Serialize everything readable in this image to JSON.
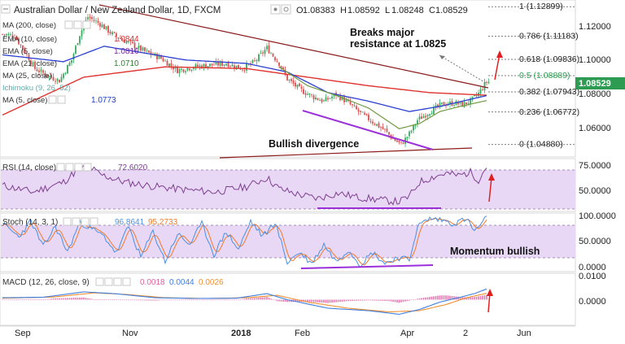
{
  "header": {
    "symbol": "Australian Dollar / New Zealand Dollar, 1D, FXCM",
    "ohlc": [
      {
        "k": "O",
        "v": "1.08383"
      },
      {
        "k": "H",
        "v": "1.08592"
      },
      {
        "k": "L",
        "v": "1.08248"
      },
      {
        "k": "C",
        "v": "1.08529"
      }
    ]
  },
  "legend": [
    {
      "label": "MA (200, close)",
      "value": "",
      "color": "#e64b3c"
    },
    {
      "label": "EMA (10, close)",
      "value": "1.0844",
      "color": "#d32f2f"
    },
    {
      "label": "EMA (5, close)",
      "value": "1.0816",
      "color": "#7b1fa2"
    },
    {
      "label": "EMA (21, close)",
      "value": "1.0710",
      "color": "#2e7d32"
    },
    {
      "label": "MA (25, close)",
      "value": "",
      "color": "#1565c0"
    },
    {
      "label": "Ichimoku (9, 26, 52)",
      "value": "",
      "color": "#00897b"
    },
    {
      "label": "MA (5, close)",
      "value": "1.0773",
      "color": "#1a3ec8"
    }
  ],
  "colors": {
    "up": "#3aa860",
    "down": "#d94f4f",
    "ma200": "#e0322e",
    "ma_blue": "#2a3fd1",
    "ema_green": "#6f9a3f",
    "trend": "#8b1a1a",
    "divergence": "#9b30d9",
    "arrow": "#e02020",
    "panel_fill": "#e6d6f5",
    "rsi_line": "#7d3f8f",
    "k_line": "#4c8fe0",
    "d_line": "#f07a2a",
    "macd": "#3f7fe0",
    "signal": "#f09030",
    "hist": "#e05fa0",
    "fib": "#333333",
    "price_tag": "#2d9b52"
  },
  "price_axis": {
    "ticks": [
      "1.12000",
      "1.10000",
      "1.08000",
      "1.06000"
    ],
    "current_price": "1.08529"
  },
  "fibonacci": [
    {
      "ratio": "1",
      "level": "1.12899"
    },
    {
      "ratio": "0.786",
      "level": "1.11183"
    },
    {
      "ratio": "0.618",
      "level": "1.09836"
    },
    {
      "ratio": "0.5",
      "level": "1.08889"
    },
    {
      "ratio": "0.382",
      "level": "1.07943"
    },
    {
      "ratio": "0.236",
      "level": "1.06772"
    },
    {
      "ratio": "0",
      "level": "1.04880"
    }
  ],
  "annotations": {
    "breakout": "Breaks major resistance at 1.0825",
    "breakout_line1": "Breaks major",
    "breakout_line2": "resistance at 1.0825",
    "divergence": "Bullish divergence",
    "momentum": "Momentum bullish"
  },
  "rsi": {
    "label": "RSI (14, close)",
    "value": "72.6020",
    "axis_ticks": [
      "75.0000",
      "50.0000"
    ]
  },
  "stoch": {
    "label": "Stoch (14, 3, 1)",
    "k_value": "96.8641",
    "d_value": "95.2733",
    "axis_ticks": [
      "100.0000",
      "50.0000",
      "0.0000"
    ]
  },
  "macd": {
    "label": "MACD (12, 26, close, 9)",
    "hist_value": "0.0018",
    "macd_value": "0.0044",
    "signal_value": "0.0026",
    "axis_ticks": [
      "0.0100",
      "0.0000"
    ]
  },
  "dates": [
    "Sep",
    "Nov",
    "2018",
    "Feb",
    "Apr",
    "2",
    "Jun"
  ],
  "chart_data": {
    "type": "candlestick",
    "title": "Australian Dollar / New Zealand Dollar, 1D, FXCM",
    "ylim": [
      1.043,
      1.131
    ],
    "anchors": [
      [
        0,
        1.113
      ],
      [
        6,
        1.112
      ],
      [
        12,
        1.101
      ],
      [
        16,
        1.093
      ],
      [
        22,
        1.089
      ],
      [
        28,
        1.086
      ],
      [
        34,
        1.098
      ],
      [
        38,
        1.113
      ],
      [
        42,
        1.123
      ],
      [
        48,
        1.119
      ],
      [
        54,
        1.113
      ],
      [
        62,
        1.108
      ],
      [
        70,
        1.103
      ],
      [
        78,
        1.099
      ],
      [
        86,
        1.092
      ],
      [
        94,
        1.094
      ],
      [
        102,
        1.095
      ],
      [
        110,
        1.096
      ],
      [
        118,
        1.093
      ],
      [
        124,
        1.097
      ],
      [
        130,
        1.105
      ],
      [
        136,
        1.096
      ],
      [
        140,
        1.087
      ],
      [
        146,
        1.081
      ],
      [
        152,
        1.077
      ],
      [
        158,
        1.074
      ],
      [
        164,
        1.078
      ],
      [
        170,
        1.073
      ],
      [
        176,
        1.067
      ],
      [
        182,
        1.062
      ],
      [
        188,
        1.057
      ],
      [
        192,
        1.052
      ],
      [
        196,
        1.049
      ],
      [
        200,
        1.055
      ],
      [
        204,
        1.063
      ],
      [
        210,
        1.068
      ],
      [
        216,
        1.072
      ],
      [
        222,
        1.073
      ],
      [
        226,
        1.072
      ],
      [
        230,
        1.074
      ],
      [
        234,
        1.0785
      ],
      [
        238,
        1.0853
      ]
    ],
    "ma200_anchors": [
      [
        0,
        1.066
      ],
      [
        40,
        1.088
      ],
      [
        80,
        1.094
      ],
      [
        120,
        1.093
      ],
      [
        150,
        1.088
      ],
      [
        180,
        1.083
      ],
      [
        210,
        1.079
      ],
      [
        238,
        1.0775
      ]
    ],
    "ma_blue_anchors": [
      [
        0,
        1.101
      ],
      [
        30,
        1.097
      ],
      [
        50,
        1.106
      ],
      [
        90,
        1.098
      ],
      [
        120,
        1.096
      ],
      [
        140,
        1.091
      ],
      [
        160,
        1.079
      ],
      [
        180,
        1.074
      ],
      [
        200,
        1.068
      ],
      [
        215,
        1.071
      ],
      [
        238,
        1.0773
      ]
    ],
    "ema_green_anchors": [
      [
        136,
        1.094
      ],
      [
        150,
        1.083
      ],
      [
        165,
        1.077
      ],
      [
        180,
        1.07
      ],
      [
        195,
        1.058
      ],
      [
        205,
        1.061
      ],
      [
        215,
        1.068
      ],
      [
        225,
        1.071
      ],
      [
        238,
        1.0744
      ]
    ],
    "rsi_anchors": [
      [
        0,
        55
      ],
      [
        15,
        49
      ],
      [
        30,
        58
      ],
      [
        38,
        71
      ],
      [
        42,
        73
      ],
      [
        48,
        65
      ],
      [
        60,
        58
      ],
      [
        75,
        54
      ],
      [
        90,
        51
      ],
      [
        105,
        49
      ],
      [
        120,
        54
      ],
      [
        130,
        62
      ],
      [
        136,
        52
      ],
      [
        145,
        47
      ],
      [
        155,
        43
      ],
      [
        165,
        48
      ],
      [
        175,
        44
      ],
      [
        185,
        42
      ],
      [
        195,
        40
      ],
      [
        200,
        45
      ],
      [
        205,
        58
      ],
      [
        212,
        63
      ],
      [
        218,
        66
      ],
      [
        224,
        64
      ],
      [
        230,
        67
      ],
      [
        234,
        60
      ],
      [
        238,
        72.6
      ]
    ],
    "stoch_k_anchors": [
      [
        0,
        85
      ],
      [
        8,
        60
      ],
      [
        14,
        90
      ],
      [
        20,
        40
      ],
      [
        26,
        80
      ],
      [
        32,
        30
      ],
      [
        38,
        88
      ],
      [
        44,
        75
      ],
      [
        50,
        60
      ],
      [
        56,
        28
      ],
      [
        62,
        80
      ],
      [
        68,
        20
      ],
      [
        74,
        70
      ],
      [
        80,
        12
      ],
      [
        86,
        65
      ],
      [
        92,
        45
      ],
      [
        98,
        85
      ],
      [
        104,
        25
      ],
      [
        110,
        70
      ],
      [
        116,
        35
      ],
      [
        122,
        90
      ],
      [
        128,
        60
      ],
      [
        134,
        88
      ],
      [
        140,
        10
      ],
      [
        146,
        30
      ],
      [
        152,
        8
      ],
      [
        158,
        45
      ],
      [
        164,
        12
      ],
      [
        170,
        35
      ],
      [
        176,
        6
      ],
      [
        182,
        30
      ],
      [
        188,
        8
      ],
      [
        194,
        20
      ],
      [
        200,
        15
      ],
      [
        204,
        80
      ],
      [
        210,
        95
      ],
      [
        216,
        92
      ],
      [
        222,
        85
      ],
      [
        228,
        95
      ],
      [
        232,
        70
      ],
      [
        238,
        96.9
      ]
    ],
    "macd_anchors": [
      [
        0,
        0.0008
      ],
      [
        20,
        0.001
      ],
      [
        40,
        0.0032
      ],
      [
        55,
        0.0025
      ],
      [
        75,
        0.0008
      ],
      [
        95,
        0.0005
      ],
      [
        115,
        0.0006
      ],
      [
        130,
        0.0025
      ],
      [
        140,
        0.0
      ],
      [
        160,
        -0.0035
      ],
      [
        180,
        -0.0045
      ],
      [
        195,
        -0.006
      ],
      [
        205,
        -0.004
      ],
      [
        215,
        -0.001
      ],
      [
        225,
        0.001
      ],
      [
        232,
        0.0025
      ],
      [
        238,
        0.0044
      ]
    ],
    "signal_anchors": [
      [
        0,
        0.0006
      ],
      [
        25,
        0.0011
      ],
      [
        45,
        0.0028
      ],
      [
        60,
        0.0022
      ],
      [
        80,
        0.0008
      ],
      [
        100,
        0.0005
      ],
      [
        120,
        0.0008
      ],
      [
        135,
        0.0018
      ],
      [
        150,
        -0.001
      ],
      [
        170,
        -0.0035
      ],
      [
        190,
        -0.005
      ],
      [
        205,
        -0.0045
      ],
      [
        218,
        -0.002
      ],
      [
        228,
        0.0008
      ],
      [
        238,
        0.0026
      ]
    ],
    "rsi_range": [
      32,
      78
    ],
    "stoch_range": [
      -6,
      104
    ],
    "macd_range": [
      -0.0105,
      0.0105
    ]
  }
}
